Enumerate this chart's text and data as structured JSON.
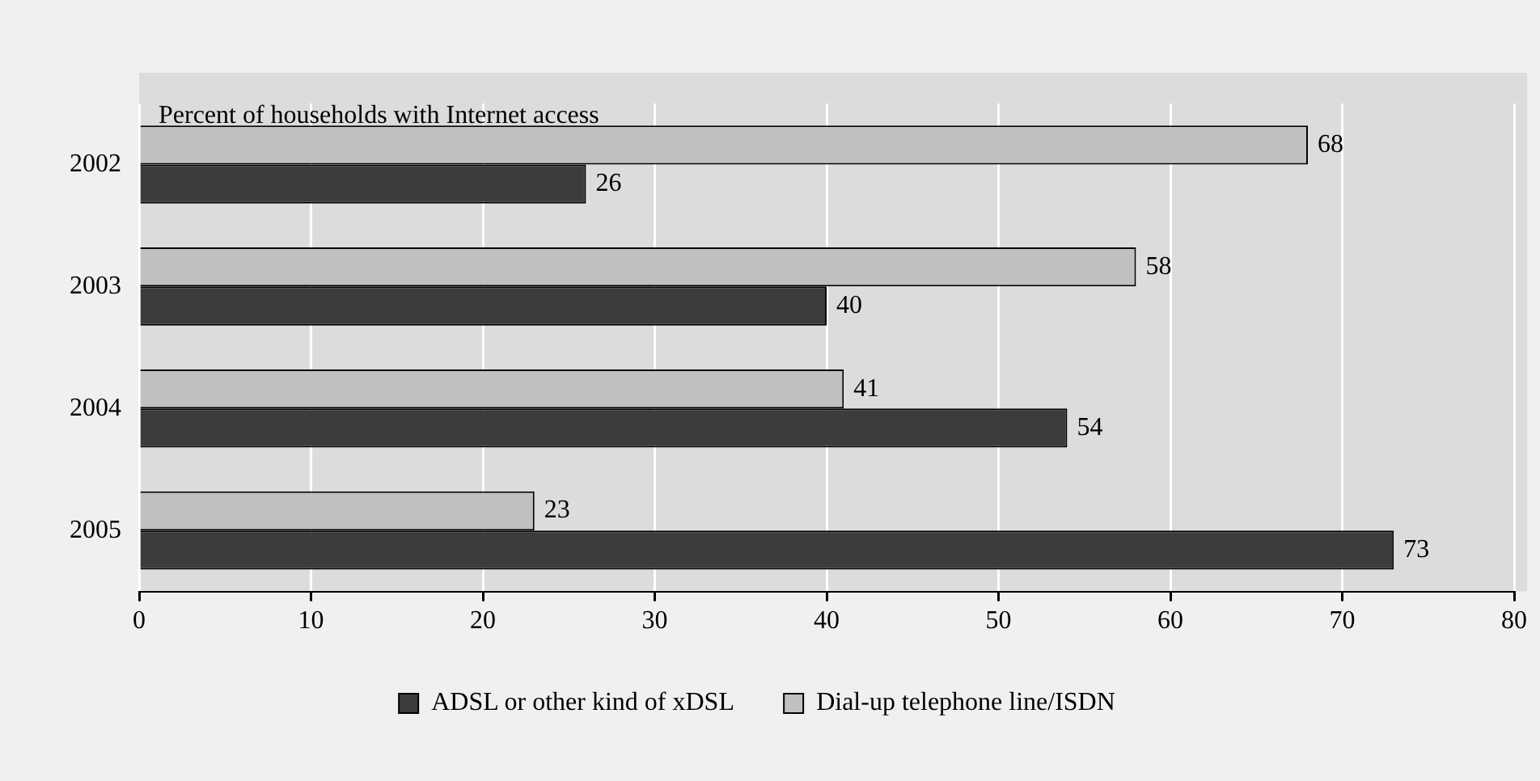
{
  "chart_data": {
    "type": "bar",
    "orientation": "horizontal",
    "title": "Percent of households with Internet access",
    "categories": [
      "2002",
      "2003",
      "2004",
      "2005"
    ],
    "series": [
      {
        "name": "Dial-up telephone line/ISDN",
        "color": "#c0c0c0",
        "values": [
          68,
          58,
          41,
          23
        ]
      },
      {
        "name": "ADSL or other kind of xDSL",
        "color": "#3c3c3c",
        "values": [
          26,
          40,
          54,
          73
        ]
      }
    ],
    "xlim": [
      0,
      80
    ],
    "xticks": [
      0,
      10,
      20,
      30,
      40,
      50,
      60,
      70,
      80
    ],
    "grid": "x",
    "legend": "bottom",
    "data_labels": true
  }
}
